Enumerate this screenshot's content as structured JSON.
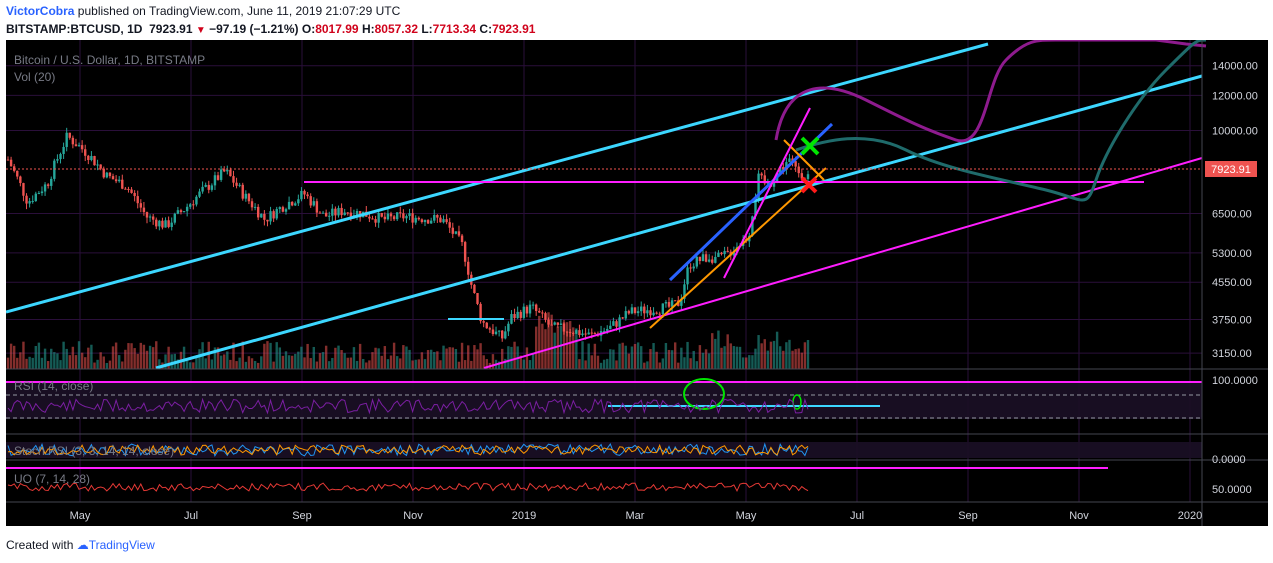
{
  "header": {
    "author": "VictorCobra",
    "published_text": " published on TradingView.com, June 11, 2019 21:07:29 UTC",
    "symbol": "BITSTAMP:BTCUSD, 1D",
    "last": "7923.91",
    "down_arrow": "▼",
    "change": "−97.19 (−1.21%)",
    "open_label": "O:",
    "open": "8017.99",
    "high_label": "H:",
    "high": "8057.32",
    "low_label": "L:",
    "low": "7713.34",
    "close_label": "C:",
    "close": "7923.91"
  },
  "footer": {
    "created_with": "Created with",
    "brand": "TradingView"
  },
  "colors": {
    "background": "#000000",
    "up": "#26a69a",
    "down": "#ef5350",
    "cyan_channel": "#3cd7ff",
    "magenta": "#ff1dff",
    "rsi": "#7b1fa2",
    "purple_ma": "#8e1b8e",
    "teal_ma": "#1f6b6b",
    "last_price_tag": "#ef5350"
  },
  "chart_data": {
    "type": "candlestick",
    "title": "Bitcoin / U.S. Dollar, 1D, BITSTAMP",
    "volume_label": "Vol (20)",
    "last_price_label": "7923.91",
    "x_ticks": [
      "May",
      "Jul",
      "Sep",
      "Nov",
      "2019",
      "Mar",
      "May",
      "Jul",
      "Sep",
      "Nov",
      "2020"
    ],
    "y_scale": "log",
    "y_range": [
      2900,
      16000
    ],
    "y_ticks": [
      "14000.00",
      "12000.00",
      "10000.00",
      "6500.00",
      "5300.00",
      "4550.00",
      "3750.00",
      "3150.00"
    ],
    "price_path": [
      [
        0.0,
        8600
      ],
      [
        0.02,
        6900
      ],
      [
        0.04,
        7600
      ],
      [
        0.06,
        9700
      ],
      [
        0.08,
        8900
      ],
      [
        0.1,
        7900
      ],
      [
        0.12,
        7500
      ],
      [
        0.14,
        6400
      ],
      [
        0.16,
        6100
      ],
      [
        0.18,
        6700
      ],
      [
        0.2,
        7400
      ],
      [
        0.22,
        8100
      ],
      [
        0.24,
        7100
      ],
      [
        0.26,
        6300
      ],
      [
        0.28,
        6800
      ],
      [
        0.3,
        7200
      ],
      [
        0.32,
        6400
      ],
      [
        0.34,
        6600
      ],
      [
        0.36,
        6500
      ],
      [
        0.38,
        6300
      ],
      [
        0.4,
        6400
      ],
      [
        0.42,
        6350
      ],
      [
        0.44,
        6300
      ],
      [
        0.46,
        5500
      ],
      [
        0.47,
        4400
      ],
      [
        0.48,
        3700
      ],
      [
        0.5,
        3400
      ],
      [
        0.51,
        3800
      ],
      [
        0.53,
        4000
      ],
      [
        0.55,
        3600
      ],
      [
        0.57,
        3550
      ],
      [
        0.59,
        3450
      ],
      [
        0.61,
        3600
      ],
      [
        0.63,
        3900
      ],
      [
        0.65,
        3950
      ],
      [
        0.67,
        4000
      ],
      [
        0.68,
        4100
      ],
      [
        0.69,
        5000
      ],
      [
        0.71,
        5200
      ],
      [
        0.72,
        5150
      ],
      [
        0.73,
        5300
      ],
      [
        0.75,
        5800
      ],
      [
        0.76,
        7800
      ],
      [
        0.77,
        7500
      ],
      [
        0.78,
        8100
      ],
      [
        0.79,
        8600
      ],
      [
        0.8,
        8100
      ],
      [
        0.81,
        7900
      ]
    ],
    "panes": [
      {
        "label": "RSI (14, close)",
        "tick": "100.0000"
      },
      {
        "label": "Stoch RSI (3, 3, 14, 14, close)",
        "tick": "0.0000"
      },
      {
        "label": "UO (7, 14, 28)",
        "tick": "50.0000"
      }
    ]
  }
}
